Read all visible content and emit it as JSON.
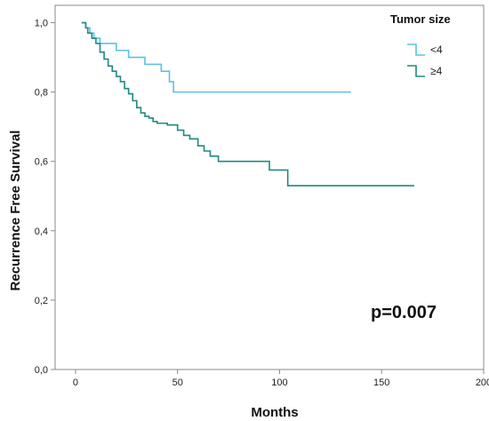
{
  "chart_data": {
    "type": "line",
    "xlabel": "Months",
    "ylabel": "Recurrence Free Survival",
    "xlim": [
      -10,
      200
    ],
    "ylim": [
      0,
      1.05
    ],
    "xticks": [
      "0",
      "50",
      "100",
      "150",
      "200"
    ],
    "xtick_values": [
      0,
      50,
      100,
      150,
      200
    ],
    "yticks": [
      "0,0",
      "0,2",
      "0,4",
      "0,6",
      "0,8",
      "1,0"
    ],
    "ytick_values": [
      0,
      0.2,
      0.4,
      0.6,
      0.8,
      1.0
    ],
    "grid": false,
    "legend": {
      "title": "Tumor size",
      "placement": "top-right",
      "entries": [
        "<4",
        "≥4"
      ]
    },
    "annotation": "p=0.007",
    "series": [
      {
        "name": "<4",
        "color": "#5bc0e8",
        "x": [
          3,
          5,
          7,
          9,
          12,
          20,
          26,
          34,
          42,
          46,
          48,
          135
        ],
        "y": [
          1.0,
          0.985,
          0.97,
          0.955,
          0.94,
          0.92,
          0.9,
          0.88,
          0.86,
          0.83,
          0.8,
          0.8
        ]
      },
      {
        "name": "≥4",
        "color": "#1f8a80",
        "x": [
          3,
          5,
          6,
          8,
          10,
          12,
          14,
          16,
          18,
          20,
          22,
          24,
          26,
          28,
          30,
          32,
          34,
          36,
          38,
          40,
          45,
          50,
          53,
          56,
          60,
          63,
          66,
          70,
          95,
          104,
          166
        ],
        "y": [
          1.0,
          0.985,
          0.97,
          0.955,
          0.94,
          0.915,
          0.895,
          0.875,
          0.86,
          0.845,
          0.83,
          0.81,
          0.795,
          0.775,
          0.755,
          0.74,
          0.73,
          0.725,
          0.715,
          0.71,
          0.705,
          0.69,
          0.675,
          0.665,
          0.645,
          0.63,
          0.615,
          0.6,
          0.575,
          0.53,
          0.53
        ]
      }
    ]
  }
}
